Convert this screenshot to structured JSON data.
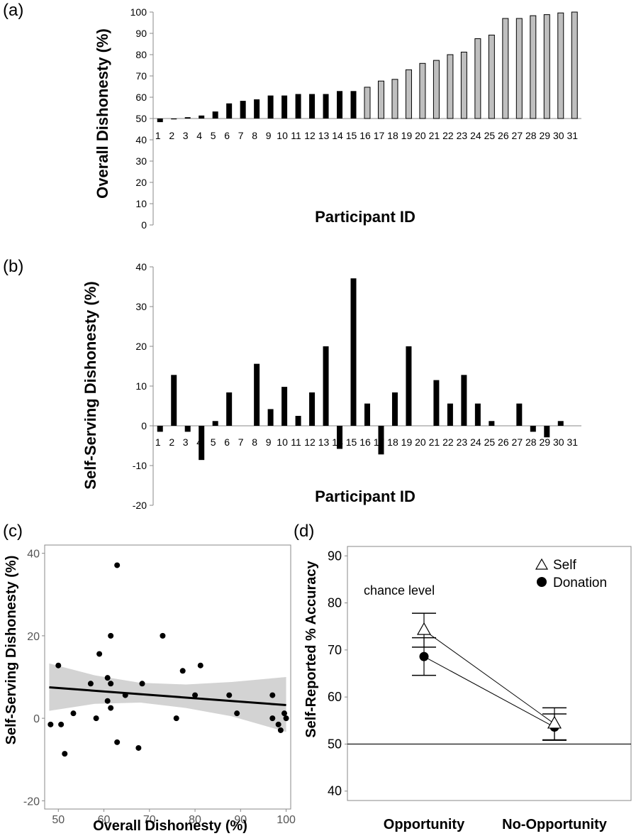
{
  "panels": {
    "a_label": "(a)",
    "b_label": "(b)",
    "c_label": "(c)",
    "d_label": "(d)"
  },
  "colors": {
    "black_bar": "#000000",
    "grey_bar": "#bfbfbf",
    "ci_band": "#d3d3d3",
    "axis": "#888888"
  },
  "chart_data": [
    {
      "id": "a",
      "type": "bar",
      "xlabel": "Participant ID",
      "ylabel": "Overall Dishonesty (%)",
      "ylim": [
        0,
        100
      ],
      "baseline": 50,
      "yticks": [
        0,
        10,
        20,
        30,
        40,
        50,
        60,
        70,
        80,
        90,
        100
      ],
      "categories": [
        "1",
        "2",
        "3",
        "4",
        "5",
        "6",
        "7",
        "8",
        "9",
        "10",
        "11",
        "12",
        "13",
        "14",
        "15",
        "16",
        "17",
        "18",
        "19",
        "20",
        "21",
        "22",
        "23",
        "24",
        "25",
        "26",
        "27",
        "28",
        "29",
        "30",
        "31"
      ],
      "values": [
        48.3,
        50.0,
        50.6,
        51.4,
        53.3,
        57.1,
        58.3,
        59.0,
        60.8,
        60.8,
        61.5,
        61.5,
        61.5,
        62.9,
        62.9,
        64.7,
        67.6,
        68.4,
        72.9,
        75.9,
        77.3,
        80.0,
        81.2,
        87.5,
        89.2,
        97.0,
        97.0,
        98.3,
        98.8,
        99.6,
        100.0
      ],
      "grey_from_index": 15
    },
    {
      "id": "b",
      "type": "bar",
      "xlabel": "Participant ID",
      "ylabel": "Self-Serving Dishonesty (%)",
      "ylim": [
        -20,
        40
      ],
      "yticks": [
        -20,
        -10,
        0,
        10,
        20,
        30,
        40
      ],
      "categories": [
        "1",
        "2",
        "3",
        "4",
        "5",
        "6",
        "7",
        "8",
        "9",
        "10",
        "11",
        "12",
        "13",
        "14",
        "15",
        "16",
        "17",
        "18",
        "19",
        "20",
        "21",
        "22",
        "23",
        "24",
        "25",
        "26",
        "27",
        "28",
        "29",
        "30",
        "31"
      ],
      "values": [
        -1.5,
        12.8,
        -1.5,
        -8.6,
        1.2,
        8.4,
        0,
        15.6,
        4.2,
        9.8,
        2.5,
        8.4,
        20.0,
        -5.8,
        37.1,
        5.6,
        -7.2,
        8.4,
        20.0,
        0,
        11.5,
        5.6,
        12.8,
        5.6,
        1.2,
        0,
        5.6,
        -1.5,
        -2.9,
        1.2,
        0
      ]
    },
    {
      "id": "c",
      "type": "scatter",
      "xlabel": "Overall Dishonesty (%)",
      "ylabel": "Self-Serving Dishonesty (%)",
      "xlim": [
        47,
        101
      ],
      "ylim": [
        -22,
        42
      ],
      "xticks": [
        50,
        60,
        70,
        80,
        90,
        100
      ],
      "yticks": [
        -20,
        0,
        20,
        40
      ],
      "x": [
        48.3,
        50.0,
        50.6,
        51.4,
        53.3,
        57.1,
        58.3,
        59.0,
        60.8,
        60.8,
        61.5,
        61.5,
        61.5,
        62.9,
        62.9,
        64.7,
        67.6,
        68.4,
        72.9,
        75.9,
        77.3,
        80.0,
        81.2,
        87.5,
        89.2,
        97.0,
        97.0,
        98.3,
        98.8,
        99.6,
        100.0
      ],
      "y": [
        -1.5,
        12.8,
        -1.5,
        -8.6,
        1.2,
        8.4,
        0,
        15.6,
        4.2,
        9.8,
        2.5,
        8.4,
        20.0,
        -5.8,
        37.1,
        5.6,
        -7.2,
        8.4,
        20.0,
        0,
        11.5,
        5.6,
        12.8,
        5.6,
        1.2,
        0,
        5.6,
        -1.5,
        -2.9,
        1.2,
        0
      ],
      "fit": {
        "x": [
          48,
          100
        ],
        "y": [
          7.5,
          3.2
        ]
      },
      "band": {
        "x": [
          48,
          58,
          68,
          78,
          88,
          100
        ],
        "lower": [
          1.8,
          3.5,
          3.8,
          2.5,
          0.5,
          -3.3
        ],
        "upper": [
          13.3,
          10.4,
          8.6,
          8.2,
          8.8,
          10.0
        ]
      }
    },
    {
      "id": "d",
      "type": "line",
      "ylabel": "Self-Reported % Accuracy",
      "ylim": [
        38,
        92
      ],
      "yticks": [
        40,
        50,
        60,
        70,
        80,
        90
      ],
      "categories": [
        "Opportunity",
        "No-Opportunity"
      ],
      "chance_level": 50,
      "chance_label": "chance level",
      "legend_position": "top-right",
      "series": [
        {
          "name": "Self",
          "marker": "open-triangle",
          "values": [
            74.2,
            54.3
          ],
          "err": [
            3.6,
            3.4
          ]
        },
        {
          "name": "Donation",
          "marker": "filled-circle",
          "values": [
            68.6,
            53.6
          ],
          "err": [
            4.0,
            2.8
          ]
        }
      ]
    }
  ]
}
